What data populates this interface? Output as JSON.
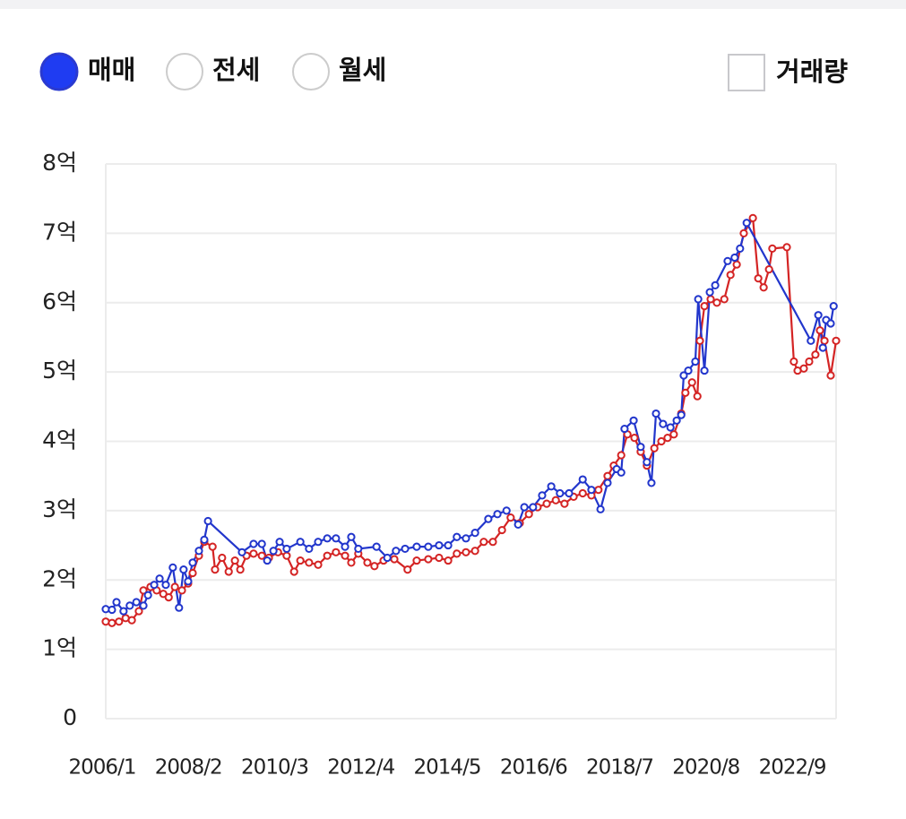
{
  "controls": {
    "radios": [
      "매매",
      "전세",
      "월세"
    ],
    "selected": 0,
    "checkbox": "거래량",
    "checked": false
  },
  "chart_data": {
    "type": "line",
    "xlim": [
      2006,
      2023.64
    ],
    "xticks": [
      {
        "value": 2006.0,
        "label": "2006/1"
      },
      {
        "value": 2008.083,
        "label": "2008/2"
      },
      {
        "value": 2010.167,
        "label": "2010/3"
      },
      {
        "value": 2012.25,
        "label": "2012/4"
      },
      {
        "value": 2014.333,
        "label": "2014/5"
      },
      {
        "value": 2016.417,
        "label": "2016/6"
      },
      {
        "value": 2018.5,
        "label": "2018/7"
      },
      {
        "value": 2020.583,
        "label": "2020/8"
      },
      {
        "value": 2022.667,
        "label": "2022/9"
      }
    ],
    "ylim": [
      0,
      8
    ],
    "yticks": [
      0,
      {
        "value": 1,
        "label": "1억"
      },
      {
        "value": 2,
        "label": "2억"
      },
      {
        "value": 3,
        "label": "3억"
      },
      {
        "value": 4,
        "label": "4억"
      },
      {
        "value": 5,
        "label": "5억"
      },
      {
        "value": 6,
        "label": "6억"
      },
      {
        "value": 7,
        "label": "7억"
      },
      {
        "value": 8,
        "label": "8억"
      }
    ],
    "grid": true,
    "series": [
      {
        "color": "#d42424",
        "x": [
          2006.0,
          2006.15,
          2006.32,
          2006.48,
          2006.63,
          2006.8,
          2006.91,
          2007.08,
          2007.23,
          2007.39,
          2007.52,
          2007.67,
          2007.84,
          2007.99,
          2008.1,
          2008.25,
          2008.38,
          2008.58,
          2008.64,
          2008.81,
          2008.97,
          2009.12,
          2009.25,
          2009.4,
          2009.57,
          2009.77,
          2009.94,
          2010.16,
          2010.37,
          2010.55,
          2010.7,
          2010.91,
          2011.13,
          2011.35,
          2011.56,
          2011.78,
          2011.93,
          2012.1,
          2012.32,
          2012.49,
          2012.71,
          2012.97,
          2013.29,
          2013.51,
          2013.79,
          2014.05,
          2014.27,
          2014.48,
          2014.7,
          2014.92,
          2015.13,
          2015.35,
          2015.57,
          2015.78,
          2016.0,
          2016.22,
          2016.43,
          2016.65,
          2016.87,
          2017.08,
          2017.3,
          2017.52,
          2017.73,
          2017.9,
          2018.12,
          2018.27,
          2018.45,
          2018.6,
          2018.77,
          2018.92,
          2019.07,
          2019.25,
          2019.42,
          2019.57,
          2019.72,
          2019.9,
          2020.0,
          2020.16,
          2020.29,
          2020.35,
          2020.46,
          2020.61,
          2020.76,
          2020.94,
          2021.09,
          2021.24,
          2021.41,
          2021.63,
          2021.76,
          2021.89,
          2022.02,
          2022.1,
          2022.45,
          2022.62,
          2022.71,
          2022.86,
          2022.99,
          2023.14,
          2023.25,
          2023.36,
          2023.51,
          2023.64
        ],
        "values": [
          1.4,
          1.38,
          1.4,
          1.45,
          1.42,
          1.55,
          1.85,
          1.9,
          1.85,
          1.8,
          1.75,
          1.9,
          1.85,
          1.95,
          2.1,
          2.35,
          2.55,
          2.48,
          2.15,
          2.32,
          2.12,
          2.28,
          2.15,
          2.35,
          2.38,
          2.35,
          2.32,
          2.4,
          2.35,
          2.12,
          2.28,
          2.25,
          2.22,
          2.35,
          2.4,
          2.35,
          2.25,
          2.38,
          2.25,
          2.2,
          2.28,
          2.3,
          2.15,
          2.28,
          2.3,
          2.32,
          2.28,
          2.38,
          2.4,
          2.42,
          2.55,
          2.55,
          2.72,
          2.9,
          2.82,
          2.95,
          3.05,
          3.1,
          3.15,
          3.1,
          3.2,
          3.25,
          3.22,
          3.3,
          3.5,
          3.65,
          3.8,
          4.1,
          4.05,
          3.85,
          3.65,
          3.9,
          4.0,
          4.05,
          4.1,
          4.4,
          4.7,
          4.85,
          4.65,
          5.45,
          5.95,
          6.05,
          6.0,
          6.05,
          6.4,
          6.55,
          7.0,
          7.22,
          6.35,
          6.22,
          6.48,
          6.78,
          6.8,
          5.15,
          5.02,
          5.05,
          5.15,
          5.25,
          5.6,
          5.45,
          4.95,
          5.45
        ]
      },
      {
        "color": "#2236cc",
        "x": [
          2006.0,
          2006.15,
          2006.26,
          2006.43,
          2006.58,
          2006.74,
          2006.91,
          2007.02,
          2007.17,
          2007.3,
          2007.45,
          2007.62,
          2007.77,
          2007.88,
          2007.99,
          2008.1,
          2008.25,
          2008.38,
          2008.47,
          2009.29,
          2009.57,
          2009.77,
          2009.9,
          2010.05,
          2010.2,
          2010.37,
          2010.7,
          2010.91,
          2011.13,
          2011.35,
          2011.56,
          2011.78,
          2011.93,
          2012.1,
          2012.54,
          2012.8,
          2013.01,
          2013.23,
          2013.51,
          2013.79,
          2014.05,
          2014.27,
          2014.48,
          2014.7,
          2014.92,
          2015.24,
          2015.46,
          2015.68,
          2015.96,
          2016.11,
          2016.32,
          2016.54,
          2016.76,
          2016.97,
          2017.19,
          2017.52,
          2017.73,
          2017.95,
          2018.12,
          2018.34,
          2018.45,
          2018.53,
          2018.75,
          2018.92,
          2019.07,
          2019.18,
          2019.29,
          2019.46,
          2019.64,
          2019.79,
          2019.9,
          2019.96,
          2020.07,
          2020.24,
          2020.31,
          2020.46,
          2020.59,
          2020.72,
          2021.02,
          2021.19,
          2021.32,
          2021.48,
          2023.03,
          2023.21,
          2023.32,
          2023.4,
          2023.51,
          2023.58
        ],
        "values": [
          1.58,
          1.57,
          1.68,
          1.55,
          1.63,
          1.68,
          1.63,
          1.78,
          1.93,
          2.02,
          1.93,
          2.18,
          1.6,
          2.15,
          1.98,
          2.25,
          2.42,
          2.58,
          2.85,
          2.4,
          2.52,
          2.52,
          2.28,
          2.42,
          2.55,
          2.45,
          2.55,
          2.45,
          2.55,
          2.6,
          2.6,
          2.48,
          2.62,
          2.45,
          2.48,
          2.32,
          2.42,
          2.45,
          2.48,
          2.48,
          2.5,
          2.5,
          2.62,
          2.6,
          2.68,
          2.88,
          2.95,
          3.0,
          2.8,
          3.05,
          3.05,
          3.22,
          3.35,
          3.25,
          3.25,
          3.45,
          3.3,
          3.02,
          3.4,
          3.6,
          3.55,
          4.18,
          4.3,
          3.92,
          3.7,
          3.4,
          4.4,
          4.25,
          4.2,
          4.3,
          4.38,
          4.95,
          5.02,
          5.15,
          6.05,
          5.02,
          6.15,
          6.25,
          6.6,
          6.65,
          6.78,
          7.15,
          5.45,
          5.82,
          5.35,
          5.75,
          5.7,
          5.95
        ]
      }
    ]
  }
}
